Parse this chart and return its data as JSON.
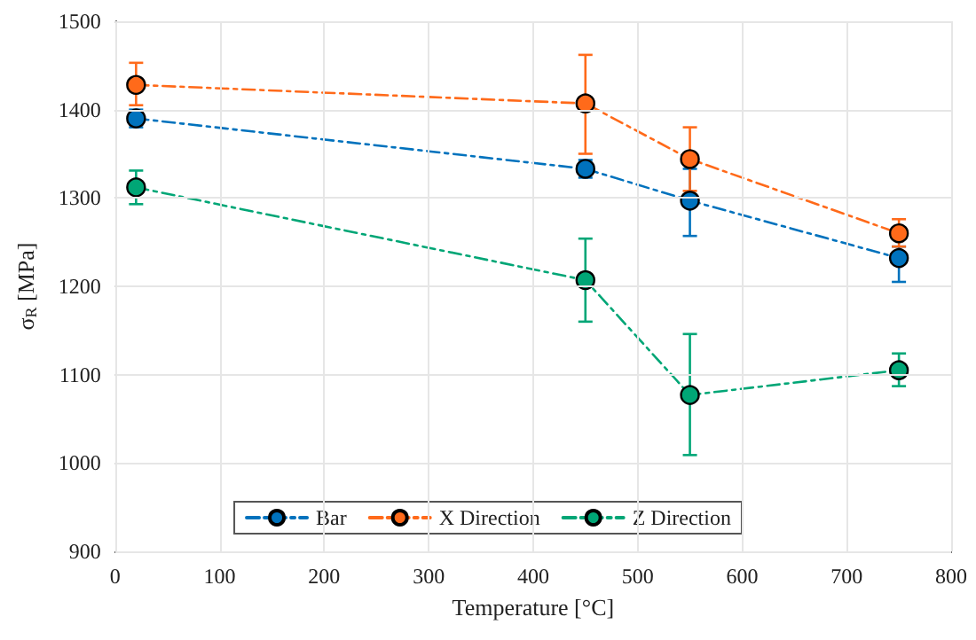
{
  "chart_data": {
    "type": "line",
    "xlabel": "Temperature [°C]",
    "ylabel": "σ$_{R}$ [MPa]",
    "x": [
      20,
      450,
      550,
      750
    ],
    "series": [
      {
        "name": "Bar",
        "color": "#0072bd",
        "values": [
          1390,
          1333,
          1297,
          1232
        ],
        "errors": [
          [
            1380,
            1400
          ],
          [
            1323,
            1343
          ],
          [
            1257,
            1333
          ],
          [
            1205,
            1245
          ]
        ]
      },
      {
        "name": "X Direction",
        "color": "#ff6a1a",
        "values": [
          1428,
          1407,
          1344,
          1260
        ],
        "errors": [
          [
            1405,
            1453
          ],
          [
            1350,
            1462
          ],
          [
            1308,
            1380
          ],
          [
            1245,
            1276
          ]
        ]
      },
      {
        "name": "Z Direction",
        "color": "#00a676",
        "values": [
          1312,
          1207,
          1077,
          1105
        ],
        "errors": [
          [
            1293,
            1331
          ],
          [
            1160,
            1254
          ],
          [
            1009,
            1146
          ],
          [
            1087,
            1124
          ]
        ]
      }
    ],
    "xlim": [
      0,
      800
    ],
    "xticks": [
      0,
      100,
      200,
      300,
      400,
      500,
      600,
      700,
      800
    ],
    "ylim": [
      900,
      1500
    ],
    "yticks": [
      900,
      1000,
      1100,
      1200,
      1300,
      1400,
      1500
    ],
    "grid": true,
    "legend": "bottom",
    "marker": "circle",
    "line_style": "dashed"
  }
}
